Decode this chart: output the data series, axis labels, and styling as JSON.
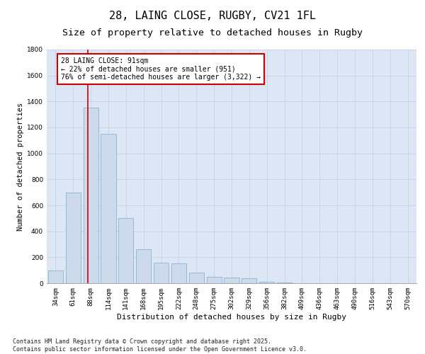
{
  "title1": "28, LAING CLOSE, RUGBY, CV21 1FL",
  "title2": "Size of property relative to detached houses in Rugby",
  "xlabel": "Distribution of detached houses by size in Rugby",
  "ylabel": "Number of detached properties",
  "categories": [
    "34sqm",
    "61sqm",
    "88sqm",
    "114sqm",
    "141sqm",
    "168sqm",
    "195sqm",
    "222sqm",
    "248sqm",
    "275sqm",
    "302sqm",
    "329sqm",
    "356sqm",
    "382sqm",
    "409sqm",
    "436sqm",
    "463sqm",
    "490sqm",
    "516sqm",
    "543sqm",
    "570sqm"
  ],
  "values": [
    100,
    700,
    1350,
    1150,
    500,
    260,
    160,
    155,
    80,
    50,
    45,
    40,
    10,
    5,
    2,
    2,
    2,
    0,
    1,
    0,
    0
  ],
  "bar_color": "#ccdaeb",
  "bar_edge_color": "#8ab4d4",
  "vline_color": "#cc0000",
  "annotation_text": "28 LAING CLOSE: 91sqm\n← 22% of detached houses are smaller (951)\n76% of semi-detached houses are larger (3,322) →",
  "annotation_box_color": "#ffffff",
  "annotation_box_edge": "#cc0000",
  "ylim": [
    0,
    1800
  ],
  "yticks": [
    0,
    200,
    400,
    600,
    800,
    1000,
    1200,
    1400,
    1600,
    1800
  ],
  "grid_color": "#c8d4e8",
  "bg_color": "#dce6f5",
  "footnote": "Contains HM Land Registry data © Crown copyright and database right 2025.\nContains public sector information licensed under the Open Government Licence v3.0.",
  "title1_fontsize": 11,
  "title2_fontsize": 9.5,
  "xlabel_fontsize": 8,
  "ylabel_fontsize": 7.5,
  "tick_fontsize": 6.5,
  "annotation_fontsize": 7,
  "footnote_fontsize": 6
}
